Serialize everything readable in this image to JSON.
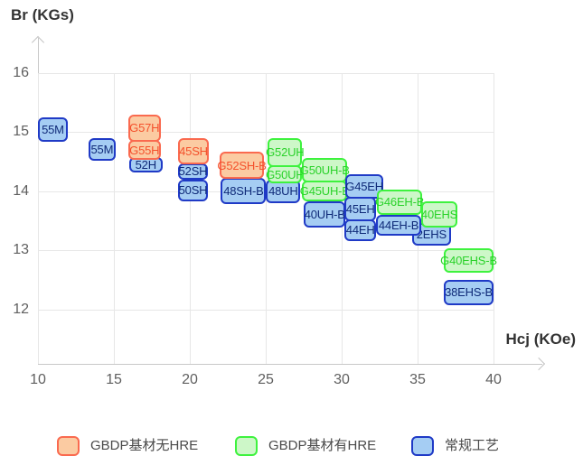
{
  "chart_data": {
    "type": "scatter",
    "title": "",
    "xlabel": "Hcj (KOe)",
    "ylabel": "Br (KGs)",
    "xlim": [
      10,
      43.2
    ],
    "ylim": [
      11.6,
      16.5
    ],
    "x_ticks": [
      10,
      15,
      20,
      25,
      30,
      35,
      40
    ],
    "y_ticks": [
      16,
      15,
      14,
      13,
      12
    ],
    "grid": true,
    "legend_position": "bottom",
    "points": [
      {
        "label": "55M",
        "series": "conventional",
        "hcj": [
          10.0,
          11.96
        ],
        "br": [
          14.84,
          15.25
        ]
      },
      {
        "label": "55M",
        "series": "conventional",
        "hcj": [
          13.33,
          15.11
        ],
        "br": [
          14.52,
          14.9
        ]
      },
      {
        "label": "52H",
        "series": "conventional",
        "hcj": [
          16.0,
          18.2
        ],
        "br": [
          14.32,
          14.58
        ]
      },
      {
        "label": "G57H",
        "series": "gbdp_no_hre",
        "hcj": [
          15.94,
          18.08
        ],
        "br": [
          14.84,
          15.3
        ]
      },
      {
        "label": "G55H",
        "series": "gbdp_no_hre",
        "hcj": [
          15.94,
          18.08
        ],
        "br": [
          14.53,
          14.87
        ]
      },
      {
        "label": "52SH",
        "series": "conventional",
        "hcj": [
          19.2,
          21.22
        ],
        "br": [
          14.2,
          14.47
        ]
      },
      {
        "label": "50SH",
        "series": "conventional",
        "hcj": [
          19.2,
          21.22
        ],
        "br": [
          13.83,
          14.2
        ]
      },
      {
        "label": "45SH",
        "series": "gbdp_no_hre",
        "hcj": [
          19.2,
          21.28
        ],
        "br": [
          14.45,
          14.9
        ]
      },
      {
        "label": "48SH-B",
        "series": "conventional",
        "hcj": [
          22.05,
          25.02
        ],
        "br": [
          13.78,
          14.23
        ]
      },
      {
        "label": "G52SH-B",
        "series": "gbdp_no_hre",
        "hcj": [
          21.94,
          24.91
        ],
        "br": [
          14.21,
          14.67
        ]
      },
      {
        "label": "48UH",
        "series": "conventional",
        "hcj": [
          25.02,
          27.28
        ],
        "br": [
          13.8,
          14.2
        ]
      },
      {
        "label": "G50UH",
        "series": "gbdp_hre",
        "hcj": [
          25.14,
          27.4
        ],
        "br": [
          14.13,
          14.44
        ]
      },
      {
        "label": "G52UH",
        "series": "gbdp_hre",
        "hcj": [
          25.14,
          27.4
        ],
        "br": [
          14.41,
          14.9
        ]
      },
      {
        "label": "G45UH-B",
        "series": "gbdp_hre",
        "hcj": [
          27.4,
          30.37
        ],
        "br": [
          13.83,
          14.18
        ]
      },
      {
        "label": "G50UH-B",
        "series": "gbdp_hre",
        "hcj": [
          27.4,
          30.37
        ],
        "br": [
          14.15,
          14.56
        ]
      },
      {
        "label": "40UH-B",
        "series": "conventional",
        "hcj": [
          27.52,
          30.25
        ],
        "br": [
          13.39,
          13.83
        ]
      },
      {
        "label": "44EH",
        "series": "conventional",
        "hcj": [
          30.19,
          32.27
        ],
        "br": [
          13.16,
          13.52
        ]
      },
      {
        "label": "45EH",
        "series": "conventional",
        "hcj": [
          30.19,
          32.27
        ],
        "br": [
          13.49,
          13.9
        ]
      },
      {
        "label": "G45EH",
        "series": "conventional",
        "hcj": [
          30.25,
          32.74
        ],
        "br": [
          13.88,
          14.29
        ]
      },
      {
        "label": "2EHS",
        "series": "conventional",
        "hcj": [
          34.64,
          37.2
        ],
        "br": [
          13.08,
          13.46
        ],
        "label_align": "right"
      },
      {
        "label": "44EH-B",
        "series": "conventional",
        "hcj": [
          32.27,
          35.24
        ],
        "br": [
          13.24,
          13.6
        ]
      },
      {
        "label": "G46EH-B",
        "series": "gbdp_hre",
        "hcj": [
          32.33,
          35.3
        ],
        "br": [
          13.6,
          14.03
        ]
      },
      {
        "label": "40EHS",
        "series": "gbdp_hre",
        "hcj": [
          35.24,
          37.62
        ],
        "br": [
          13.39,
          13.83
        ]
      },
      {
        "label": "G40EHS-B",
        "series": "gbdp_hre",
        "hcj": [
          36.73,
          40.0
        ],
        "br": [
          12.62,
          13.03
        ]
      },
      {
        "label": "38EHS-B",
        "series": "conventional",
        "hcj": [
          36.73,
          40.0
        ],
        "br": [
          12.07,
          12.5
        ]
      }
    ]
  },
  "series_styles": {
    "gbdp_no_hre": {
      "fill": "#fbcba2",
      "border": "#fa6a4f",
      "text": "#f4512c"
    },
    "gbdp_hre": {
      "fill": "#cdf7c8",
      "border": "#3ef23e",
      "text": "#2bd22b"
    },
    "conventional": {
      "fill": "#a5cdf3",
      "border": "#1f3ac6",
      "text": "#0f2a78"
    }
  },
  "legend": [
    {
      "label": "GBDP基材无HRE",
      "series": "gbdp_no_hre"
    },
    {
      "label": "GBDP基材有HRE",
      "series": "gbdp_hre"
    },
    {
      "label": "常规工艺",
      "series": "conventional"
    }
  ]
}
